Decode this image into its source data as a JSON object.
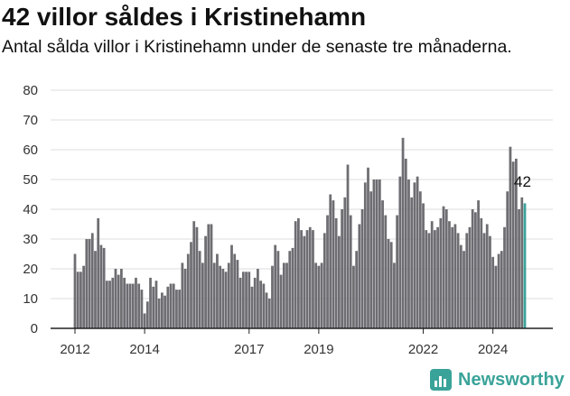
{
  "title": "42 villor såldes i Kristinehamn",
  "subtitle": "Antal sålda villor i Kristinehamn under de senaste tre månaderna.",
  "brand": {
    "name": "Newsworthy"
  },
  "colors": {
    "bar": "#6d6d72",
    "highlight": "#3aa399",
    "grid": "#dcdcdc",
    "axis": "#222222",
    "brand": "#3aa399"
  },
  "chart_data": {
    "type": "bar",
    "title": "42 villor såldes i Kristinehamn",
    "subtitle": "Antal sålda villor i Kristinehamn under de senaste tre månaderna.",
    "xlabel": "",
    "ylabel": "",
    "ylim": [
      0,
      80
    ],
    "yticks": [
      0,
      10,
      20,
      30,
      40,
      50,
      60,
      70,
      80
    ],
    "xticks": [
      "2012",
      "2014",
      "2017",
      "2019",
      "2022",
      "2024"
    ],
    "grid": true,
    "annotation": {
      "text": "42",
      "target": "last bar"
    },
    "series": [
      {
        "values": [
          25,
          19,
          19,
          21,
          30,
          30,
          32,
          26,
          37,
          28,
          27,
          16,
          16,
          17,
          20,
          18,
          20,
          17,
          15,
          15,
          15,
          17,
          15,
          13,
          5,
          9,
          17,
          14,
          16,
          10,
          12,
          11,
          14,
          15,
          15,
          13,
          13,
          22,
          20,
          25,
          29,
          36,
          34,
          26,
          22,
          31,
          35,
          35,
          22,
          25,
          21,
          20,
          19,
          22,
          28,
          25,
          23,
          17,
          19,
          19,
          19,
          14,
          17,
          20,
          16,
          15,
          12,
          10,
          21,
          28,
          26,
          18,
          22,
          22,
          26,
          27,
          36,
          37,
          33,
          31,
          33,
          34,
          33,
          22,
          21,
          22,
          32,
          38,
          45,
          43,
          37,
          31,
          40,
          44,
          55,
          38,
          21,
          26,
          35,
          40,
          49,
          54,
          46,
          50,
          50,
          50,
          43,
          38,
          30,
          29,
          22,
          38,
          51,
          64,
          57,
          50,
          44,
          49,
          51,
          46,
          42,
          33,
          32,
          36,
          33,
          34,
          37,
          41,
          40,
          36,
          34,
          35,
          32,
          28,
          26,
          32,
          34,
          40,
          39,
          43,
          37,
          32,
          35,
          31,
          24,
          21,
          25,
          26,
          34,
          46,
          61,
          56,
          57,
          40,
          44,
          42
        ]
      }
    ]
  }
}
